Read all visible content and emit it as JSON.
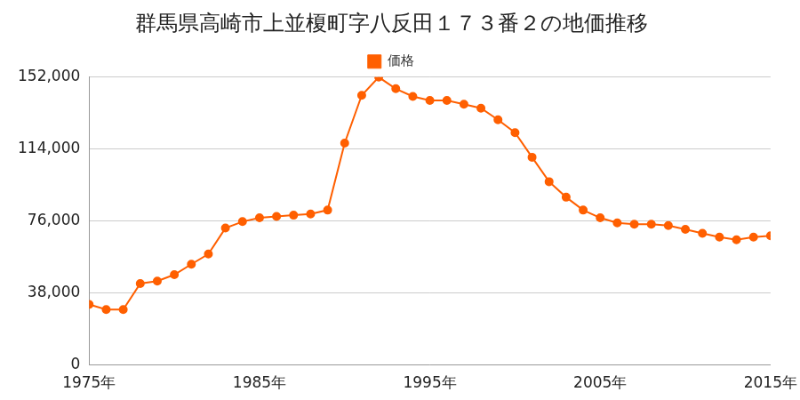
{
  "chart_data": {
    "type": "line",
    "title": "群馬県高崎市上並榎町字八反田１７３番２の地価推移",
    "x": [
      1975,
      1976,
      1977,
      1978,
      1979,
      1980,
      1981,
      1982,
      1983,
      1984,
      1985,
      1986,
      1987,
      1988,
      1989,
      1990,
      1991,
      1992,
      1993,
      1994,
      1995,
      1996,
      1997,
      1998,
      1999,
      2000,
      2001,
      2002,
      2003,
      2004,
      2005,
      2006,
      2007,
      2008,
      2009,
      2010,
      2011,
      2012,
      2013,
      2014,
      2015
    ],
    "series": [
      {
        "name": "価格",
        "color": "#ff5f00",
        "marker": "circle",
        "values": [
          32000,
          29300,
          29300,
          43000,
          44300,
          47700,
          53200,
          58600,
          72300,
          75700,
          77700,
          78400,
          79100,
          79700,
          81800,
          117200,
          142400,
          152000,
          145900,
          141800,
          139700,
          139700,
          137700,
          135600,
          129500,
          122700,
          109700,
          96800,
          88600,
          81800,
          77700,
          75000,
          74300,
          74300,
          73600,
          71600,
          69500,
          67500,
          66100,
          67500,
          68200
        ]
      }
    ],
    "xlim": [
      1975,
      2015
    ],
    "xticks": [
      {
        "value": 1975,
        "label": "1975年"
      },
      {
        "value": 1985,
        "label": "1985年"
      },
      {
        "value": 1995,
        "label": "1995年"
      },
      {
        "value": 2005,
        "label": "2005年"
      },
      {
        "value": 2015,
        "label": "2015年"
      }
    ],
    "ylim": [
      0,
      152000
    ],
    "yticks": [
      0,
      {
        "value": 38000,
        "label": "38,000"
      },
      {
        "value": 76000,
        "label": "76,000"
      },
      {
        "value": 114000,
        "label": "114,000"
      },
      {
        "value": 152000,
        "label": "152,000"
      }
    ],
    "grid": true,
    "legend": "top"
  }
}
